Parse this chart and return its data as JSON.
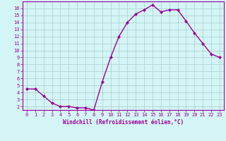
{
  "x": [
    0,
    1,
    2,
    3,
    4,
    5,
    6,
    7,
    8,
    9,
    10,
    11,
    12,
    13,
    14,
    15,
    16,
    17,
    18,
    19,
    20,
    21,
    22,
    23
  ],
  "y": [
    4.5,
    4.5,
    3.5,
    2.5,
    2.0,
    2.0,
    1.8,
    1.8,
    1.5,
    5.5,
    9.0,
    12.0,
    14.0,
    15.2,
    15.8,
    16.5,
    15.5,
    15.8,
    15.8,
    14.2,
    12.5,
    11.0,
    9.5,
    9.0
  ],
  "line_color": "#990099",
  "marker": "D",
  "marker_size": 2,
  "bg_color": "#d4f5f5",
  "grid_color": "#aacccc",
  "xlabel": "Windchill (Refroidissement éolien,°C)",
  "xlabel_color": "#990099",
  "tick_color": "#990099",
  "ylim": [
    1.5,
    17.0
  ],
  "xlim": [
    -0.5,
    23.5
  ],
  "yticks": [
    2,
    3,
    4,
    5,
    6,
    7,
    8,
    9,
    10,
    11,
    12,
    13,
    14,
    15,
    16
  ],
  "xticks": [
    0,
    1,
    2,
    3,
    4,
    5,
    6,
    7,
    8,
    9,
    10,
    11,
    12,
    13,
    14,
    15,
    16,
    17,
    18,
    19,
    20,
    21,
    22,
    23
  ],
  "linewidth": 1.0,
  "spine_color": "#990099",
  "tick_fontsize": 5.0,
  "xlabel_fontsize": 5.5
}
